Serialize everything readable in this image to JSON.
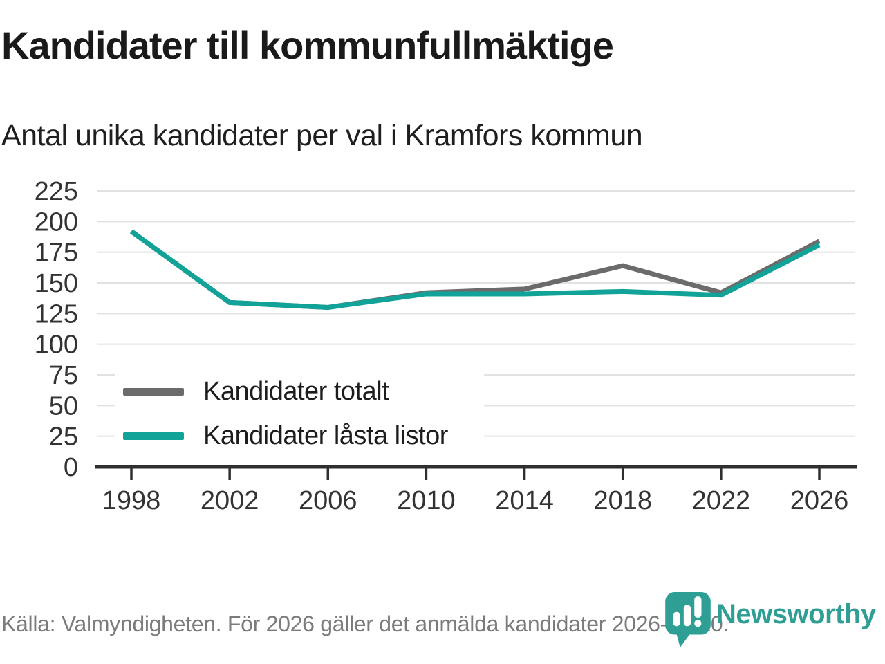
{
  "header": {
    "title": "Kandidater till kommunfullmäktige",
    "subtitle": "Antal unika kandidater per val i Kramfors kommun"
  },
  "chart_data": {
    "type": "line",
    "x": [
      1998,
      2002,
      2006,
      2010,
      2014,
      2018,
      2022,
      2026
    ],
    "series": [
      {
        "name": "Kandidater totalt",
        "color": "#6b6b6b",
        "values": [
          192,
          134,
          130,
          142,
          145,
          164,
          142,
          184
        ]
      },
      {
        "name": "Kandidater låsta listor",
        "color": "#12a398",
        "values": [
          192,
          134,
          130,
          141,
          141,
          143,
          140,
          181
        ]
      }
    ],
    "ylim": [
      0,
      225
    ],
    "yticks": [
      0,
      25,
      50,
      75,
      100,
      125,
      150,
      175,
      200,
      225
    ],
    "grid": true,
    "legend_position": "inside-bottom-left",
    "grid_color": "#e2e2e2",
    "axis_color": "#2f2f2f"
  },
  "footer": {
    "source": "Källa: Valmyndigheten. För 2026 gäller det anmälda kandidater 2026-04-10."
  },
  "branding": {
    "wordmark": "Newsworthy",
    "logo_color": "#2f9f95"
  }
}
